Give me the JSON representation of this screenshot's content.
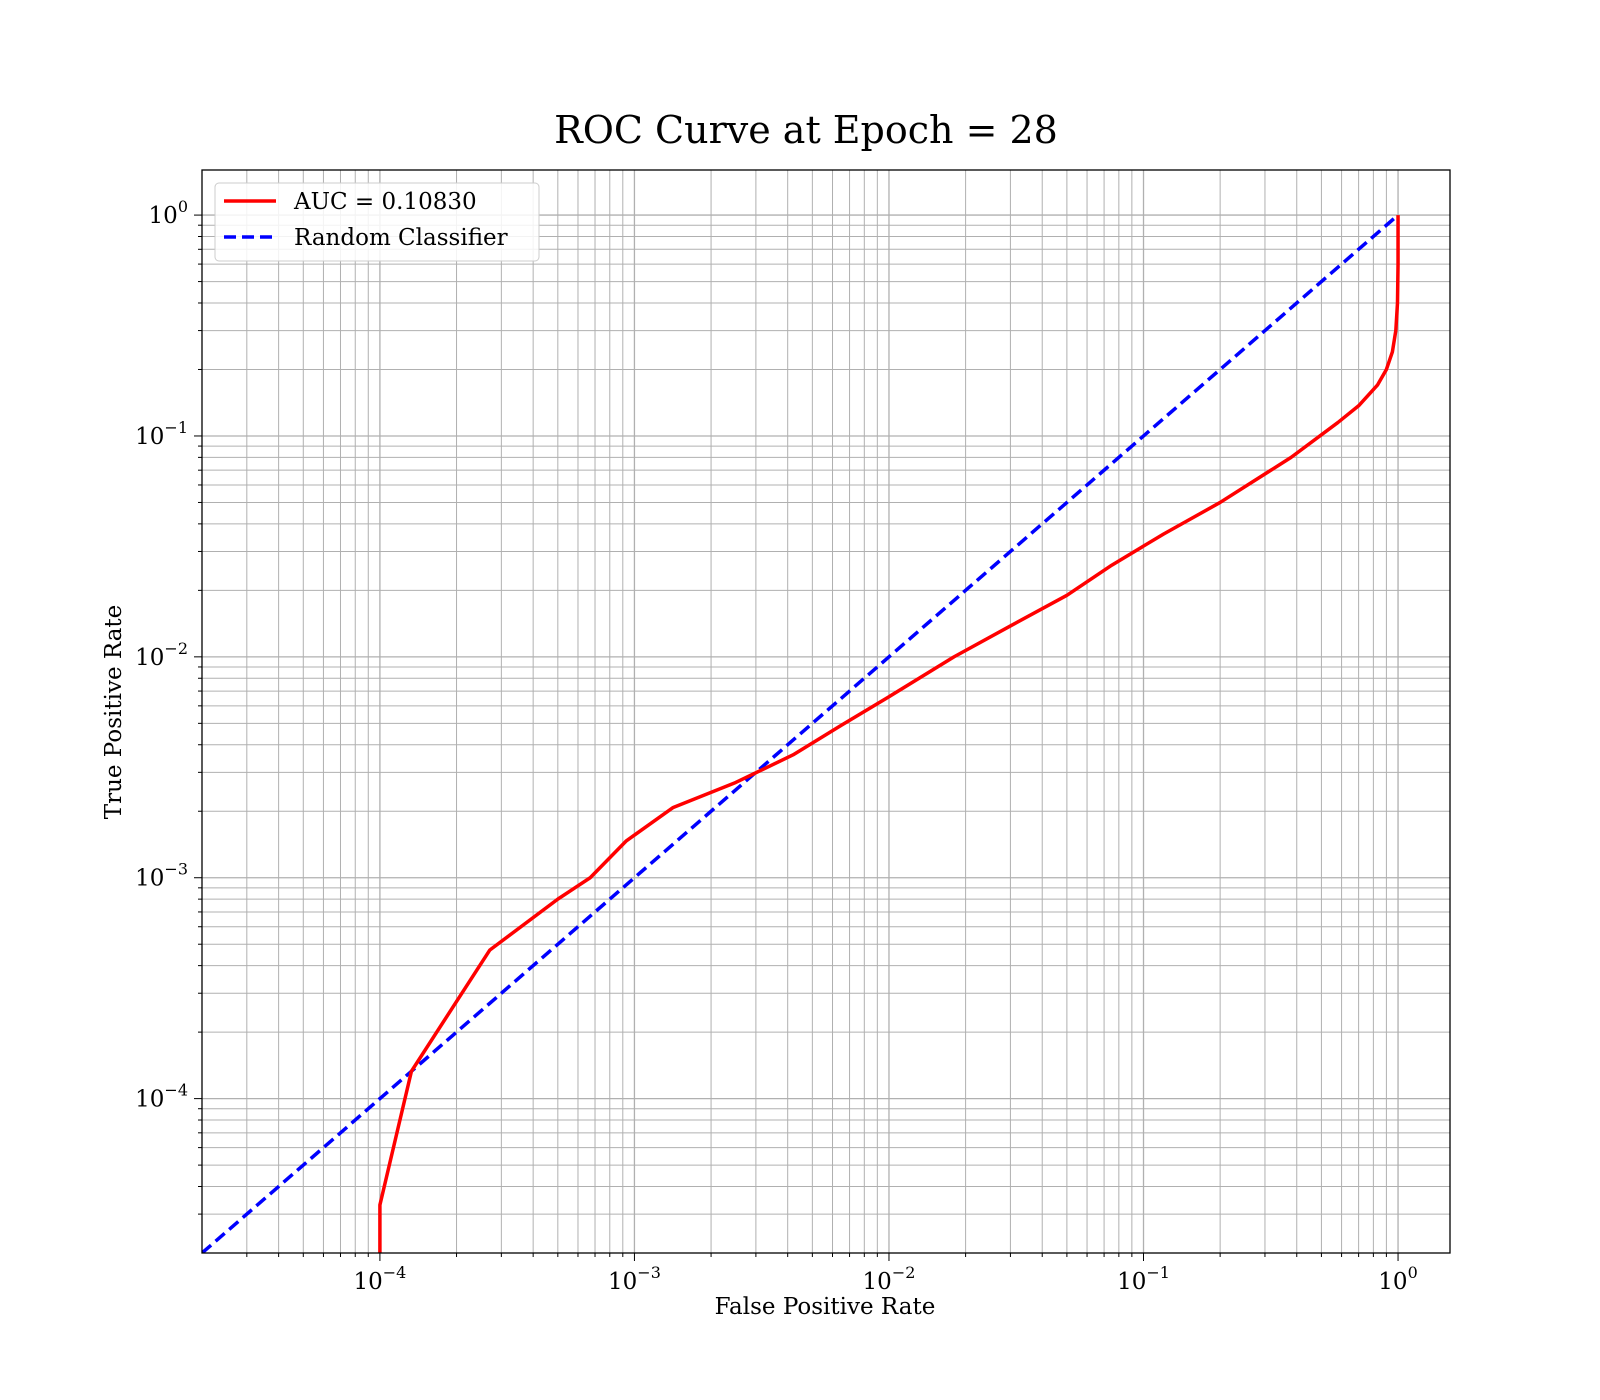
{
  "chart_data": {
    "type": "line",
    "title": "ROC Curve at Epoch = 28",
    "xlabel": "False Positive Rate",
    "ylabel": "True Positive Rate",
    "xscale": "log",
    "yscale": "log",
    "xlim": [
      2e-05,
      1.6
    ],
    "ylim": [
      2e-05,
      1.6
    ],
    "grid": "both (major and minor)",
    "legend_position": "top-left",
    "x_ticks": [
      {
        "base": "10",
        "exp": "−4",
        "value": 0.0001
      },
      {
        "base": "10",
        "exp": "−3",
        "value": 0.001
      },
      {
        "base": "10",
        "exp": "−2",
        "value": 0.01
      },
      {
        "base": "10",
        "exp": "−1",
        "value": 0.1
      },
      {
        "base": "10",
        "exp": "0",
        "value": 1
      }
    ],
    "y_ticks": [
      {
        "base": "10",
        "exp": "−4",
        "value": 0.0001
      },
      {
        "base": "10",
        "exp": "−3",
        "value": 0.001
      },
      {
        "base": "10",
        "exp": "−2",
        "value": 0.01
      },
      {
        "base": "10",
        "exp": "−1",
        "value": 0.1
      },
      {
        "base": "10",
        "exp": "0",
        "value": 1
      }
    ],
    "series": [
      {
        "name": "AUC = 0.10830",
        "color": "#ff0000",
        "style": "solid",
        "x": [
          0.0001,
          0.0001,
          0.000133,
          0.00027,
          0.0005,
          0.00067,
          0.00093,
          0.00142,
          0.0025,
          0.0042,
          0.0065,
          0.01,
          0.018,
          0.03,
          0.05,
          0.075,
          0.12,
          0.2,
          0.38,
          0.58,
          0.7,
          0.83,
          0.9,
          0.95,
          0.98,
          0.995,
          1.0,
          1.0
        ],
        "y": [
          2e-05,
          3.3e-05,
          0.000133,
          0.00047,
          0.0008,
          0.001,
          0.00147,
          0.00208,
          0.0027,
          0.0036,
          0.0049,
          0.0066,
          0.01,
          0.0138,
          0.019,
          0.026,
          0.036,
          0.05,
          0.08,
          0.115,
          0.137,
          0.17,
          0.2,
          0.24,
          0.3,
          0.4,
          0.6,
          1.0
        ]
      },
      {
        "name": "Random Classifier",
        "color": "#0000ff",
        "style": "dashed",
        "x": [
          2e-05,
          1.0
        ],
        "y": [
          2e-05,
          1.0
        ]
      }
    ]
  }
}
